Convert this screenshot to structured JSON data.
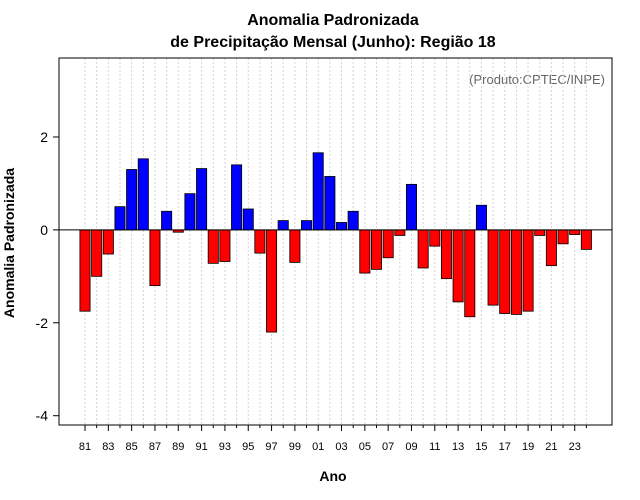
{
  "chart_data": {
    "type": "bar",
    "title": "Anomalia Padronizada",
    "subtitle": "de Precipitação Mensal (Junho): Região 18",
    "xlabel": "Ano",
    "ylabel": "Anomalia Padronizada",
    "source_label": "(Produto:CPTEC/INPE)",
    "ylim": [
      -4.2,
      3.7
    ],
    "yticks": [
      -4,
      -2,
      0,
      2
    ],
    "grid": "vertical dotted",
    "positive_color": "#0000ff",
    "negative_color": "#ff0000",
    "categories": [
      "81",
      "82",
      "83",
      "84",
      "85",
      "86",
      "87",
      "88",
      "89",
      "90",
      "91",
      "92",
      "93",
      "94",
      "95",
      "96",
      "97",
      "98",
      "99",
      "00",
      "01",
      "02",
      "03",
      "04",
      "05",
      "06",
      "07",
      "08",
      "09",
      "10",
      "11",
      "12",
      "13",
      "14",
      "15",
      "16",
      "17",
      "18",
      "19",
      "20",
      "21",
      "22",
      "23",
      "24"
    ],
    "tick_labels": [
      "81",
      "83",
      "85",
      "87",
      "89",
      "91",
      "93",
      "95",
      "97",
      "99",
      "01",
      "03",
      "05",
      "07",
      "09",
      "11",
      "13",
      "15",
      "17",
      "19",
      "21",
      "23"
    ],
    "values": [
      -1.75,
      -1.0,
      -0.52,
      0.5,
      1.3,
      1.53,
      -1.2,
      0.4,
      -0.05,
      0.78,
      1.32,
      -0.72,
      -0.68,
      1.4,
      0.45,
      -0.5,
      -2.2,
      0.2,
      -0.7,
      0.2,
      1.66,
      1.15,
      0.16,
      0.4,
      -0.93,
      -0.85,
      -0.6,
      -0.12,
      0.98,
      -0.82,
      -0.35,
      -1.05,
      -1.55,
      -1.87,
      0.53,
      -1.62,
      -1.8,
      -1.82,
      -1.75,
      -0.12,
      -0.77,
      -0.3,
      -0.1,
      -0.42
    ]
  }
}
